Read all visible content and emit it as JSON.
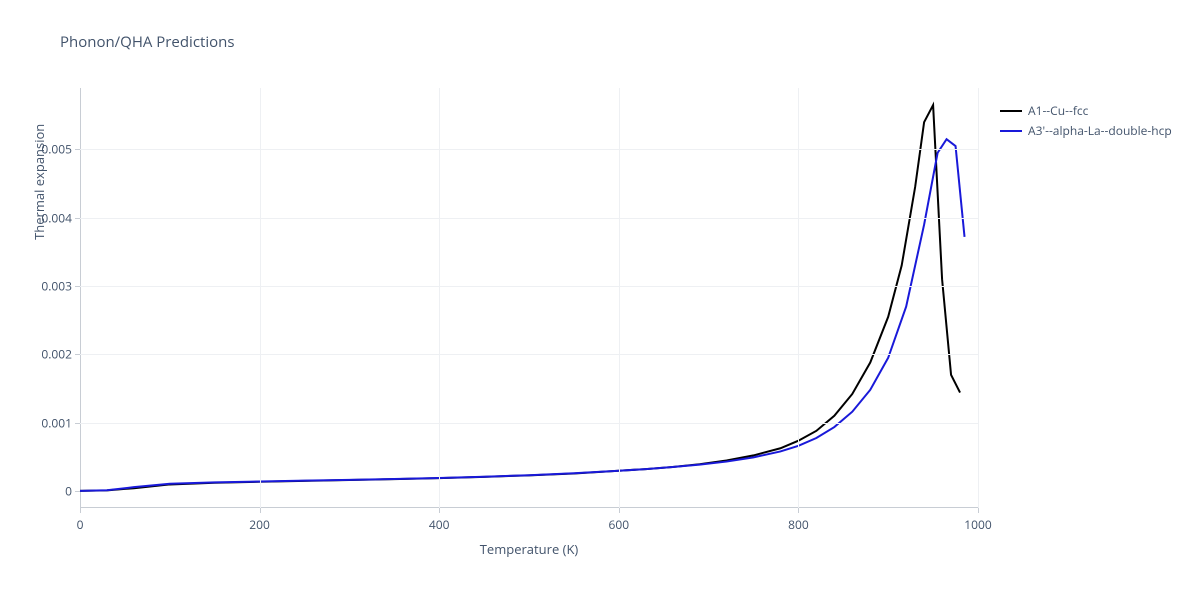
{
  "title": "Phonon/QHA Predictions",
  "chart": {
    "type": "line",
    "xlabel": "Temperature (K)",
    "ylabel": "Thermal expansion",
    "background_color": "#ffffff",
    "grid_color": "#eef0f3",
    "axis_line_color": "#c8cdd4",
    "text_color": "#42536b",
    "title_fontsize": 15,
    "label_fontsize": 13,
    "tick_fontsize": 12,
    "xlim": [
      0,
      1000
    ],
    "ylim": [
      -0.00025,
      0.0059
    ],
    "xticks": [
      0,
      200,
      400,
      600,
      800,
      1000
    ],
    "yticks": [
      0,
      0.001,
      0.002,
      0.003,
      0.004,
      0.005
    ],
    "ytick_labels": [
      "0",
      "0.001",
      "0.002",
      "0.003",
      "0.004",
      "0.005"
    ],
    "line_width": 2,
    "series": [
      {
        "name": "A1--Cu--fcc",
        "color": "#000000",
        "x": [
          0,
          30,
          60,
          100,
          150,
          200,
          250,
          300,
          350,
          400,
          450,
          500,
          550,
          600,
          630,
          660,
          690,
          720,
          750,
          780,
          800,
          820,
          840,
          860,
          880,
          900,
          915,
          930,
          940,
          950,
          960,
          970,
          980
        ],
        "y": [
          0.0,
          8e-06,
          4e-05,
          9.5e-05,
          0.00012,
          0.000135,
          0.000148,
          0.00016,
          0.000172,
          0.000188,
          0.000206,
          0.000228,
          0.000256,
          0.000295,
          0.00032,
          0.00035,
          0.00039,
          0.000445,
          0.00052,
          0.000625,
          0.000735,
          0.00088,
          0.0011,
          0.00142,
          0.00188,
          0.00255,
          0.0033,
          0.00445,
          0.0054,
          0.00565,
          0.0031,
          0.0017,
          0.00144
        ]
      },
      {
        "name": "A3'--alpha-La--double-hcp",
        "color": "#1919d9",
        "x": [
          0,
          30,
          60,
          100,
          150,
          200,
          250,
          300,
          350,
          400,
          450,
          500,
          550,
          600,
          630,
          660,
          690,
          720,
          750,
          780,
          800,
          820,
          840,
          860,
          880,
          900,
          920,
          940,
          955,
          965,
          975,
          985
        ],
        "y": [
          0.0,
          1e-05,
          5.5e-05,
          0.000105,
          0.000125,
          0.000138,
          0.00015,
          0.000162,
          0.000175,
          0.00019,
          0.000208,
          0.00023,
          0.000258,
          0.000295,
          0.00032,
          0.00035,
          0.000385,
          0.00043,
          0.000492,
          0.000578,
          0.00066,
          0.000775,
          0.000935,
          0.00116,
          0.00148,
          0.00195,
          0.0027,
          0.0039,
          0.00495,
          0.00515,
          0.00505,
          0.00372
        ]
      }
    ],
    "legend_position": "right"
  }
}
